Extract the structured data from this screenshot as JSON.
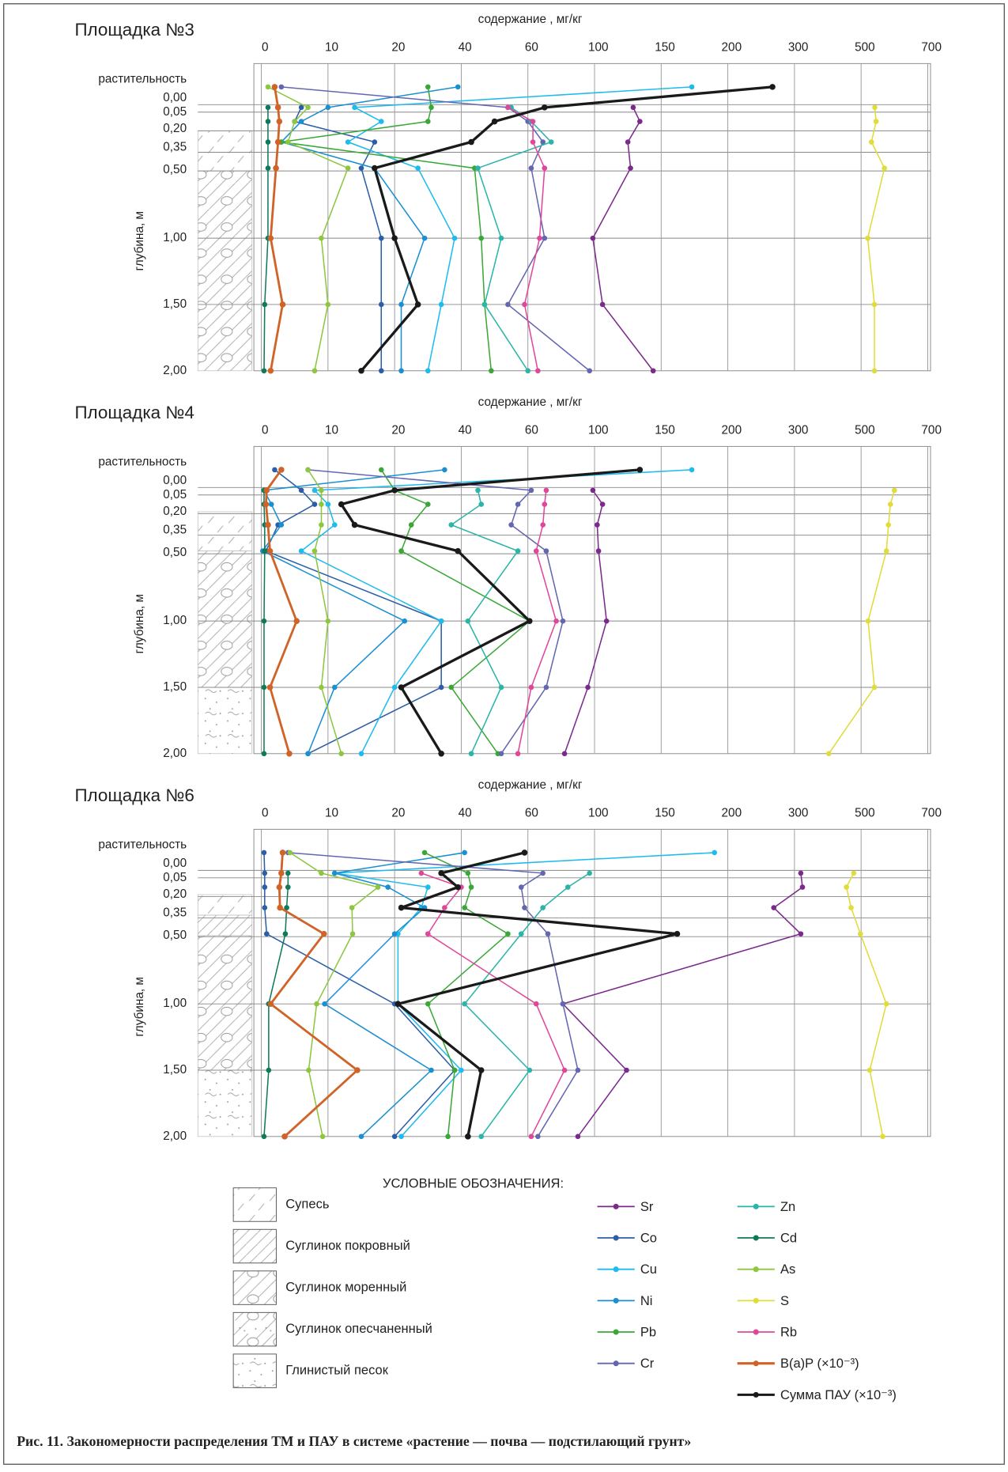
{
  "chart_data": [
    {
      "type": "line",
      "title": "Площадка №3",
      "x_label": "содержание , мг/кг",
      "y_label": "глубина, м",
      "depth_labels": [
        "растительность",
        "0,00",
        "0,05",
        "0,20",
        "0,35",
        "0,50",
        "1,00",
        "1,50",
        "2,00"
      ],
      "xlim": [
        0,
        700
      ],
      "xticks": [
        0,
        10,
        20,
        40,
        60,
        100,
        150,
        200,
        300,
        500,
        700
      ],
      "series": [
        {
          "values": [
            null,
            129,
            134,
            125,
            127,
            99,
            106,
            144
          ]
        },
        {
          "values": [
            null,
            6,
            5,
            17,
            15,
            18,
            18,
            18
          ]
        },
        {
          "values": [
            173,
            14,
            18,
            13,
            27,
            38,
            34,
            30
          ]
        },
        {
          "values": [
            39,
            10,
            6,
            3,
            17,
            29,
            22,
            22
          ]
        },
        {
          "values": [
            30,
            31,
            30,
            3,
            44,
            46,
            47,
            49
          ]
        },
        {
          "values": [
            3,
            54,
            60,
            69,
            62,
            70,
            54,
            97
          ]
        },
        {
          "values": [
            null,
            55,
            62,
            74,
            45,
            52,
            47,
            60
          ]
        },
        {
          "values": [
            null,
            1,
            1,
            1,
            1,
            1,
            0.5,
            0.4
          ]
        },
        {
          "values": [
            1,
            7,
            5,
            4,
            13,
            9,
            10,
            8
          ]
        },
        {
          "values": [
            null,
            541,
            545,
            531,
            570,
            520,
            540,
            540
          ]
        },
        {
          "values": [
            null,
            54,
            63,
            63,
            70,
            67,
            59,
            66
          ]
        },
        {
          "values": [
            2,
            2.5,
            2.7,
            2.5,
            2.2,
            1.4,
            3.2,
            1.4
          ]
        },
        {
          "values": [
            267,
            70,
            50,
            43,
            17,
            20,
            27,
            15
          ]
        }
      ]
    },
    {
      "type": "line",
      "title": "Площадка №4",
      "x_label": "содержание , мг/кг",
      "y_label": "глубина, м",
      "depth_labels": [
        "растительность",
        "0,00",
        "0,05",
        "0,20",
        "0,35",
        "0,50",
        "1,00",
        "1,50",
        "2,00"
      ],
      "xlim": [
        0,
        700
      ],
      "xticks": [
        0,
        10,
        20,
        40,
        60,
        100,
        150,
        200,
        300,
        500,
        700
      ],
      "series": [
        {
          "values": [
            null,
            99,
            106,
            102,
            103,
            109,
            96,
            82
          ]
        },
        {
          "values": [
            2,
            6,
            8,
            2.5,
            0.7,
            34,
            34,
            7
          ]
        },
        {
          "values": [
            173,
            8,
            10,
            11,
            6,
            34,
            20,
            15
          ]
        },
        {
          "values": [
            35,
            0.4,
            1.5,
            3,
            0.2,
            23,
            11,
            7
          ]
        },
        {
          "values": [
            18,
            20,
            30,
            25,
            22,
            61,
            37,
            51
          ]
        },
        {
          "values": [
            7,
            62,
            57,
            55,
            71,
            81,
            71,
            52
          ]
        },
        {
          "values": [
            null,
            45,
            46,
            37,
            57,
            42,
            52,
            43
          ]
        },
        {
          "values": [
            null,
            0.4,
            0.4,
            0.5,
            0.5,
            0.4,
            0.4,
            0.4
          ]
        },
        {
          "values": [
            7,
            9,
            9,
            9,
            8,
            10,
            9,
            12
          ]
        },
        {
          "values": [
            null,
            600,
            588,
            582,
            576,
            521,
            540,
            403
          ]
        },
        {
          "values": [
            null,
            71,
            70,
            69,
            65,
            77,
            62,
            57
          ]
        },
        {
          "values": [
            3,
            0.8,
            0.7,
            1,
            1.3,
            5.3,
            1.3,
            4.2
          ]
        },
        {
          "values": [
            134,
            20,
            12,
            14,
            39,
            61,
            22,
            34
          ]
        }
      ]
    },
    {
      "type": "line",
      "title": "Площадка №6",
      "x_label": "содержание , мг/кг",
      "y_label": "глубина, м",
      "depth_labels": [
        "растительность",
        "0,00",
        "0,05",
        "0,20",
        "0,35",
        "0,50",
        "1,00",
        "1,50",
        "2,00"
      ],
      "xlim": [
        0,
        700
      ],
      "xticks": [
        0,
        10,
        20,
        40,
        60,
        100,
        150,
        200,
        300,
        500,
        700
      ],
      "series": [
        {
          "values": [
            null,
            319,
            324,
            269,
            319,
            81,
            124,
            90
          ]
        },
        {
          "values": [
            0.4,
            0.5,
            0.5,
            0.5,
            0.8,
            20,
            38,
            20
          ]
        },
        {
          "values": [
            190,
            11,
            30,
            28,
            21,
            21,
            40,
            22
          ]
        },
        {
          "values": [
            41,
            11,
            19,
            29,
            20,
            9.5,
            31,
            15
          ]
        },
        {
          "values": [
            29,
            42,
            43,
            41,
            54,
            30,
            38,
            36
          ]
        },
        {
          "values": [
            4,
            69,
            58,
            59,
            72,
            81,
            90,
            66
          ]
        },
        {
          "values": [
            null,
            97,
            84,
            69,
            58,
            41,
            61,
            46
          ]
        },
        {
          "values": [
            null,
            4,
            4,
            3.8,
            3.6,
            1.1,
            1.1,
            0.4
          ]
        },
        {
          "values": [
            4.3,
            9,
            17.5,
            13.6,
            13.7,
            8.3,
            7.1,
            9.2
          ]
        },
        {
          "values": [
            null,
            478,
            456,
            470,
            498,
            576,
            526,
            565
          ]
        },
        {
          "values": [
            null,
            28,
            40,
            35,
            30,
            65,
            82,
            62
          ]
        },
        {
          "values": [
            3.2,
            3,
            2.7,
            2.8,
            9.4,
            1.4,
            14.4,
            3.5
          ]
        },
        {
          "values": [
            59,
            34,
            39,
            22,
            162,
            21,
            46,
            42
          ]
        }
      ]
    }
  ],
  "legend": {
    "title": "УСЛОВНЫЕ ОБОЗНАЧЕНИЯ:",
    "items": [
      {
        "name": "Sr",
        "color": "#7b2a8c"
      },
      {
        "name": "Co",
        "color": "#2b5ea7"
      },
      {
        "name": "Cu",
        "color": "#1ebbee"
      },
      {
        "name": "Ni",
        "color": "#1a8fd1"
      },
      {
        "name": "Pb",
        "color": "#3aa838"
      },
      {
        "name": "Cr",
        "color": "#6466b0"
      },
      {
        "name": "Zn",
        "color": "#2ab5a8"
      },
      {
        "name": "Cd",
        "color": "#0f7a5a"
      },
      {
        "name": "As",
        "color": "#8dc63f"
      },
      {
        "name": "S",
        "color": "#e0dc3a"
      },
      {
        "name": "Rb",
        "color": "#e0479b"
      },
      {
        "name": "B(a)P (×10⁻³)",
        "color": "#d06428"
      },
      {
        "name": "Сумма ПАУ (×10⁻³)",
        "color": "#1a1a1a"
      }
    ]
  },
  "soil_legend": [
    "Супесь",
    "Суглинок покровный",
    "Суглинок моренный",
    "Суглинок опесчаненный",
    "Глинистый песок"
  ],
  "caption": "Рис. 11. Закономерности распределения ТМ и ПАУ в системе «растение — почва — подстилающий грунт»"
}
